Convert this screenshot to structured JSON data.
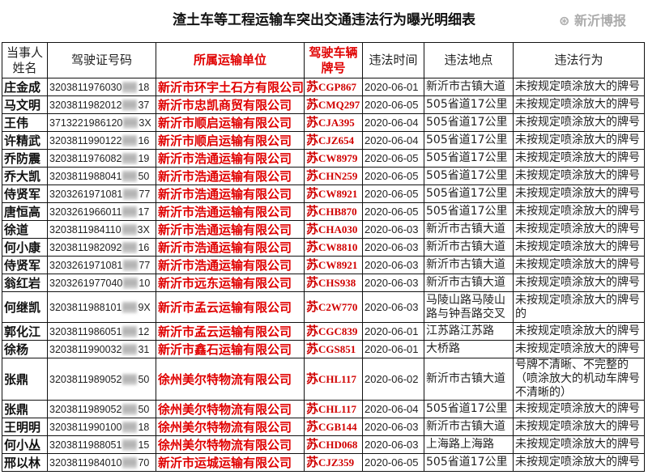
{
  "title": "渣土车等工程运输车突出交通违法行为曝光明细表",
  "headers": [
    "当事人姓名",
    "驾驶证号码",
    "所属运输单位",
    "驾驶车辆牌号",
    "违法时间",
    "违法地点",
    "违法行为"
  ],
  "colors": {
    "accent_red": "#e00000",
    "text": "#222222"
  },
  "watermark": "新沂博报",
  "rows": [
    {
      "name": "庄金成",
      "id_prefix": "3203811976030",
      "id_suffix": "18",
      "unit": "新沂市环宇土石方有限公司",
      "plate_prefix": "苏",
      "plate": "CGP867",
      "date": "2020-06-01",
      "place": "新沂市古镇大道",
      "act": "未按规定喷涂放大的牌号"
    },
    {
      "name": "马文明",
      "id_prefix": "3203811982012",
      "id_suffix": "37",
      "unit": "新沂市忠凯商贸有限公司",
      "plate_prefix": "苏",
      "plate": "CMQ297",
      "date": "2020-06-05",
      "place": "505省道17公里",
      "act": "未按规定喷涂放大的牌号"
    },
    {
      "name": "王伟",
      "id_prefix": "3713221986120",
      "id_suffix": "3X",
      "unit": "新沂市顺启运输有限公司",
      "plate_prefix": "苏",
      "plate": "CJA395",
      "date": "2020-06-04",
      "place": "505省道17公里",
      "act": "未按规定喷涂放大的牌号"
    },
    {
      "name": "许精武",
      "id_prefix": "3203811990122",
      "id_suffix": "16",
      "unit": "新沂市顺启运输有限公司",
      "plate_prefix": "苏",
      "plate": "CJZ654",
      "date": "2020-06-04",
      "place": "505省道17公里",
      "act": "未按规定喷涂放大的牌号"
    },
    {
      "name": "乔防震",
      "id_prefix": "3203811976082",
      "id_suffix": "19",
      "unit": "新沂市浩通运输有限公司",
      "plate_prefix": "苏",
      "plate": "CW8979",
      "date": "2020-06-05",
      "place": "505省道17公里",
      "act": "未按规定喷涂放大的牌号"
    },
    {
      "name": "乔大凯",
      "id_prefix": "3203811988041",
      "id_suffix": "50",
      "unit": "新沂市浩通运输有限公司",
      "plate_prefix": "苏",
      "plate": "CHN259",
      "date": "2020-06-05",
      "place": "505省道17公里",
      "act": "未按规定喷涂放大的牌号"
    },
    {
      "name": "侍贤军",
      "id_prefix": "3203261971081",
      "id_suffix": "77",
      "unit": "新沂市浩通运输有限公司",
      "plate_prefix": "苏",
      "plate": "CW8921",
      "date": "2020-06-05",
      "place": "505省道17公里",
      "act": "未按规定喷涂放大的牌号"
    },
    {
      "name": "唐恒高",
      "id_prefix": "3203261966011",
      "id_suffix": "17",
      "unit": "新沂市浩通运输有限公司",
      "plate_prefix": "苏",
      "plate": "CHB870",
      "date": "2020-06-05",
      "place": "505省道17公里",
      "act": "未按规定喷涂放大的牌号"
    },
    {
      "name": "徐道",
      "id_prefix": "3203811984110",
      "id_suffix": "3X",
      "unit": "新沂市浩通运输有限公司",
      "plate_prefix": "苏",
      "plate": "CHA030",
      "date": "2020-06-03",
      "place": "新沂市古镇大道",
      "act": "未按规定喷涂放大的牌号"
    },
    {
      "name": "何小康",
      "id_prefix": "3203811982092",
      "id_suffix": "16",
      "unit": "新沂市浩通运输有限公司",
      "plate_prefix": "苏",
      "plate": "CW8810",
      "date": "2020-06-03",
      "place": "新沂市古镇大道",
      "act": "未按规定喷涂放大的牌号"
    },
    {
      "name": "侍贤军",
      "id_prefix": "3203261971081",
      "id_suffix": "77",
      "unit": "新沂市浩通运输有限公司",
      "plate_prefix": "苏",
      "plate": "CW8921",
      "date": "2020-06-03",
      "place": "新沂市古镇大道",
      "act": "未按规定喷涂放大的牌号"
    },
    {
      "name": "翁红岩",
      "id_prefix": "3203261977040",
      "id_suffix": "10",
      "unit": "新沂市远东运输有限公司",
      "plate_prefix": "苏",
      "plate": "CHS938",
      "date": "2020-06-03",
      "place": "新沂市古镇大道",
      "act": "未按规定喷涂放大的牌号"
    },
    {
      "name": "何继凯",
      "id_prefix": "3203811988101",
      "id_suffix": "9X",
      "unit": "新沂市孟云运输有限公司",
      "plate_prefix": "苏",
      "plate": "C2W770",
      "date": "2020-06-03",
      "place": "马陵山路马陵山路与钟吾路交叉",
      "act": "未按规定喷涂放大的牌号的",
      "tall": 1
    },
    {
      "name": "郭化江",
      "id_prefix": "3203811986051",
      "id_suffix": "12",
      "unit": "新沂市孟云运输有限公司",
      "plate_prefix": "苏",
      "plate": "CGC839",
      "date": "2020-06-01",
      "place": "江苏路江苏路",
      "act": "未按规定喷涂放大的牌号"
    },
    {
      "name": "徐杨",
      "id_prefix": "3203811990032",
      "id_suffix": "31",
      "unit": "新沂市鑫石运输有限公司",
      "plate_prefix": "苏",
      "plate": "CGS851",
      "date": "2020-06-01",
      "place": "大桥路",
      "act": "未按规定喷涂放大的牌号"
    },
    {
      "name": "张鼎",
      "id_prefix": "3203811989052",
      "id_suffix": "50",
      "unit": "徐州美尔特物流有限公司",
      "plate_prefix": "苏",
      "plate": "CHL117",
      "date": "2020-06-02",
      "place": "新沂市古镇大道",
      "act": "号牌不清晰、不完整的（喷涂放大的机动车牌号不清晰的）",
      "tall": 2
    },
    {
      "name": "张鼎",
      "id_prefix": "3203811989052",
      "id_suffix": "50",
      "unit": "徐州美尔特物流有限公司",
      "plate_prefix": "苏",
      "plate": "CHL117",
      "date": "2020-06-04",
      "place": "505省道17公里",
      "act": "未按规定喷涂放大的牌号"
    },
    {
      "name": "王明明",
      "id_prefix": "3203811990100",
      "id_suffix": "18",
      "unit": "徐州美尔特物流有限公司",
      "plate_prefix": "苏",
      "plate": "CGB144",
      "date": "2020-06-03",
      "place": "新沂市古镇大道",
      "act": "未按规定喷涂放大的牌号"
    },
    {
      "name": "何小丛",
      "id_prefix": "3203811988051",
      "id_suffix": "15",
      "unit": "徐州美尔特物流有限公司",
      "plate_prefix": "苏",
      "plate": "CHD068",
      "date": "2020-06-03",
      "place": "上海路上海路",
      "act": "未按规定喷涂放大的牌号"
    },
    {
      "name": "邢以林",
      "id_prefix": "3203811984010",
      "id_suffix": "70",
      "unit": "新沂市运城运输有限公司",
      "plate_prefix": "苏",
      "plate": "CJZ359",
      "date": "2020-06-05",
      "place": "505省道17公里",
      "act": "未按规定喷涂放大的牌号"
    }
  ]
}
